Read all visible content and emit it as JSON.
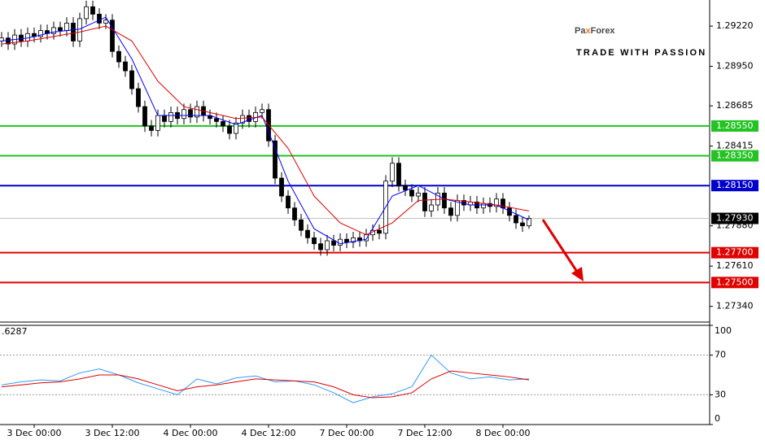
{
  "chart_data": {
    "type": "candlestick",
    "logo": [
      "Pa",
      "x",
      "Forex"
    ],
    "tagline": "TRADE WITH PASSION",
    "ylim": [
      1.2724,
      1.29395
    ],
    "yticks": [
      {
        "value": 1.2922,
        "label": "1.29220"
      },
      {
        "value": 1.2895,
        "label": "1.28950"
      },
      {
        "value": 1.28685,
        "label": "1.28685"
      },
      {
        "value": 1.28415,
        "label": "1.28415"
      },
      {
        "value": 1.2788,
        "label": "1.27880"
      },
      {
        "value": 1.2761,
        "label": "1.27610"
      },
      {
        "value": 1.2734,
        "label": "1.27340"
      }
    ],
    "xlim": [
      0,
      109
    ],
    "xticks": [
      {
        "value": 5,
        "label": "3 Dec 00:00"
      },
      {
        "value": 17,
        "label": "3 Dec 12:00"
      },
      {
        "value": 29,
        "label": "4 Dec 00:00"
      },
      {
        "value": 41,
        "label": "4 Dec 12:00"
      },
      {
        "value": 53,
        "label": "7 Dec 00:00"
      },
      {
        "value": 65,
        "label": "7 Dec 12:00"
      },
      {
        "value": 77,
        "label": "8 Dec 00:00"
      }
    ],
    "levels": [
      {
        "value": 1.2855,
        "label": "1.28550",
        "color": "#22c322"
      },
      {
        "value": 1.2835,
        "label": "1.28350",
        "color": "#22c322"
      },
      {
        "value": 1.2815,
        "label": "1.28150",
        "color": "#0000cc"
      },
      {
        "value": 1.277,
        "label": "1.27700",
        "color": "#e00000"
      },
      {
        "value": 1.275,
        "label": "1.27500",
        "color": "#e00000"
      }
    ],
    "current_price": {
      "value": 1.2793,
      "label": "1.27930"
    },
    "ohlc": [
      [
        1.2912,
        1.2918,
        1.2908,
        1.2914
      ],
      [
        1.2914,
        1.2918,
        1.2906,
        1.291
      ],
      [
        1.291,
        1.292,
        1.2906,
        1.2916
      ],
      [
        1.2916,
        1.292,
        1.2908,
        1.2912
      ],
      [
        1.2912,
        1.2921,
        1.2908,
        1.2917
      ],
      [
        1.2917,
        1.2921,
        1.2911,
        1.2915
      ],
      [
        1.2915,
        1.2923,
        1.2911,
        1.2919
      ],
      [
        1.2919,
        1.2923,
        1.2913,
        1.2917
      ],
      [
        1.2917,
        1.2925,
        1.2913,
        1.2921
      ],
      [
        1.2921,
        1.2925,
        1.2915,
        1.2919
      ],
      [
        1.2919,
        1.2928,
        1.2915,
        1.2924
      ],
      [
        1.2924,
        1.2928,
        1.2908,
        1.2912
      ],
      [
        1.2912,
        1.2931,
        1.2908,
        1.2927
      ],
      [
        1.2927,
        1.2939,
        1.2923,
        1.2935
      ],
      [
        1.2935,
        1.2939,
        1.2926,
        1.293
      ],
      [
        1.293,
        1.2934,
        1.292,
        1.2924
      ],
      [
        1.2924,
        1.293,
        1.292,
        1.2926
      ],
      [
        1.2926,
        1.293,
        1.2901,
        1.2905
      ],
      [
        1.2905,
        1.2909,
        1.2894,
        1.2898
      ],
      [
        1.2898,
        1.2902,
        1.2888,
        1.2892
      ],
      [
        1.2892,
        1.2896,
        1.2876,
        1.288
      ],
      [
        1.288,
        1.2884,
        1.2864,
        1.2868
      ],
      [
        1.2868,
        1.2872,
        1.2851,
        1.2855
      ],
      [
        1.2855,
        1.2859,
        1.2848,
        1.2852
      ],
      [
        1.2852,
        1.2866,
        1.2848,
        1.2862
      ],
      [
        1.2862,
        1.2866,
        1.2854,
        1.2858
      ],
      [
        1.2858,
        1.2868,
        1.2854,
        1.2864
      ],
      [
        1.2864,
        1.2868,
        1.2856,
        1.286
      ],
      [
        1.286,
        1.287,
        1.2856,
        1.2866
      ],
      [
        1.2866,
        1.287,
        1.2857,
        1.2861
      ],
      [
        1.2861,
        1.2872,
        1.2857,
        1.2868
      ],
      [
        1.2868,
        1.2872,
        1.2858,
        1.2862
      ],
      [
        1.2862,
        1.2866,
        1.2856,
        1.286
      ],
      [
        1.286,
        1.2864,
        1.2854,
        1.2858
      ],
      [
        1.2858,
        1.2862,
        1.2851,
        1.2855
      ],
      [
        1.2855,
        1.2859,
        1.2846,
        1.285
      ],
      [
        1.285,
        1.2861,
        1.2846,
        1.2857
      ],
      [
        1.2857,
        1.2866,
        1.2853,
        1.2862
      ],
      [
        1.2862,
        1.2866,
        1.2854,
        1.2858
      ],
      [
        1.2858,
        1.2868,
        1.2854,
        1.2864
      ],
      [
        1.2864,
        1.287,
        1.286,
        1.2866
      ],
      [
        1.2866,
        1.287,
        1.2841,
        1.2845
      ],
      [
        1.2845,
        1.2849,
        1.2816,
        1.282
      ],
      [
        1.282,
        1.2824,
        1.2804,
        1.2808
      ],
      [
        1.2808,
        1.2812,
        1.2796,
        1.28
      ],
      [
        1.28,
        1.2804,
        1.2788,
        1.2792
      ],
      [
        1.2792,
        1.2796,
        1.2781,
        1.2785
      ],
      [
        1.2785,
        1.2789,
        1.2776,
        1.278
      ],
      [
        1.278,
        1.2784,
        1.2772,
        1.2776
      ],
      [
        1.2776,
        1.278,
        1.2768,
        1.2772
      ],
      [
        1.2772,
        1.2782,
        1.2768,
        1.2778
      ],
      [
        1.2778,
        1.2782,
        1.2771,
        1.2775
      ],
      [
        1.2775,
        1.2783,
        1.2771,
        1.2779
      ],
      [
        1.2779,
        1.2783,
        1.2773,
        1.2777
      ],
      [
        1.2777,
        1.2784,
        1.2773,
        1.278
      ],
      [
        1.278,
        1.2784,
        1.2774,
        1.2778
      ],
      [
        1.2778,
        1.2786,
        1.2774,
        1.2782
      ],
      [
        1.2782,
        1.2789,
        1.2778,
        1.2785
      ],
      [
        1.2785,
        1.2789,
        1.2779,
        1.2783
      ],
      [
        1.2783,
        1.2822,
        1.2779,
        1.2818
      ],
      [
        1.2818,
        1.2834,
        1.2814,
        1.283
      ],
      [
        1.283,
        1.2834,
        1.2811,
        1.2815
      ],
      [
        1.2815,
        1.2819,
        1.2808,
        1.2812
      ],
      [
        1.2812,
        1.2816,
        1.2804,
        1.2808
      ],
      [
        1.2808,
        1.2814,
        1.2804,
        1.281
      ],
      [
        1.281,
        1.2814,
        1.2794,
        1.2798
      ],
      [
        1.2798,
        1.2806,
        1.2794,
        1.2802
      ],
      [
        1.2802,
        1.2814,
        1.2798,
        1.281
      ],
      [
        1.281,
        1.2814,
        1.2796,
        1.28
      ],
      [
        1.28,
        1.2804,
        1.2791,
        1.2795
      ],
      [
        1.2795,
        1.2809,
        1.2791,
        1.2805
      ],
      [
        1.2805,
        1.2809,
        1.2798,
        1.2802
      ],
      [
        1.2802,
        1.2808,
        1.2798,
        1.2804
      ],
      [
        1.2804,
        1.2808,
        1.2796,
        1.28
      ],
      [
        1.28,
        1.2807,
        1.2796,
        1.2803
      ],
      [
        1.2803,
        1.2807,
        1.2797,
        1.2801
      ],
      [
        1.2801,
        1.281,
        1.2797,
        1.2806
      ],
      [
        1.2806,
        1.281,
        1.2796,
        1.28
      ],
      [
        1.28,
        1.2804,
        1.2791,
        1.2795
      ],
      [
        1.2795,
        1.2799,
        1.2786,
        1.279
      ],
      [
        1.279,
        1.2794,
        1.2784,
        1.2788
      ],
      [
        1.2788,
        1.2795,
        1.2786,
        1.2793
      ]
    ],
    "series": [
      {
        "color": "#0000ff",
        "x": [
          0,
          4,
          8,
          12,
          16,
          20,
          24,
          28,
          32,
          36,
          40,
          44,
          48,
          52,
          56,
          60,
          64,
          68,
          72,
          76,
          81
        ],
        "values": [
          1.2912,
          1.2914,
          1.2918,
          1.292,
          1.2928,
          1.29,
          1.2862,
          1.2862,
          1.2862,
          1.2856,
          1.2862,
          1.2818,
          1.2786,
          1.2776,
          1.2779,
          1.2808,
          1.2815,
          1.2806,
          1.2802,
          1.2802,
          1.2792
        ]
      },
      {
        "color": "#e00000",
        "x": [
          0,
          4,
          8,
          12,
          16,
          20,
          24,
          28,
          32,
          36,
          40,
          44,
          48,
          52,
          56,
          60,
          64,
          68,
          72,
          76,
          81
        ],
        "values": [
          1.291,
          1.2912,
          1.2915,
          1.2918,
          1.2922,
          1.2912,
          1.2885,
          1.2868,
          1.2864,
          1.286,
          1.2861,
          1.284,
          1.2808,
          1.279,
          1.2782,
          1.279,
          1.2805,
          1.2806,
          1.2804,
          1.2802,
          1.2798
        ]
      }
    ],
    "oscillator": {
      "label": ".6287",
      "ylim": [
        0,
        100
      ],
      "yticks": [
        0,
        30,
        70,
        100
      ],
      "levels": [
        30,
        70
      ],
      "series": [
        {
          "color": "#3399ff",
          "x": [
            0,
            3,
            6,
            9,
            12,
            15,
            18,
            21,
            24,
            27,
            30,
            33,
            36,
            39,
            42,
            45,
            48,
            51,
            54,
            57,
            60,
            63,
            66,
            69,
            72,
            75,
            78,
            81
          ],
          "values": [
            40,
            43,
            45,
            44,
            52,
            56,
            50,
            42,
            36,
            30,
            46,
            41,
            47,
            49,
            43,
            44,
            40,
            32,
            22,
            28,
            31,
            38,
            70,
            52,
            46,
            48,
            45,
            46
          ]
        },
        {
          "color": "#e00000",
          "x": [
            0,
            3,
            6,
            9,
            12,
            15,
            18,
            21,
            24,
            27,
            30,
            33,
            36,
            39,
            42,
            45,
            48,
            51,
            54,
            57,
            60,
            63,
            66,
            69,
            72,
            75,
            78,
            81
          ],
          "values": [
            38,
            40,
            42,
            43,
            46,
            50,
            50,
            46,
            40,
            34,
            38,
            40,
            43,
            46,
            45,
            44,
            43,
            38,
            30,
            27,
            28,
            32,
            46,
            54,
            52,
            50,
            48,
            45
          ]
        }
      ]
    }
  }
}
